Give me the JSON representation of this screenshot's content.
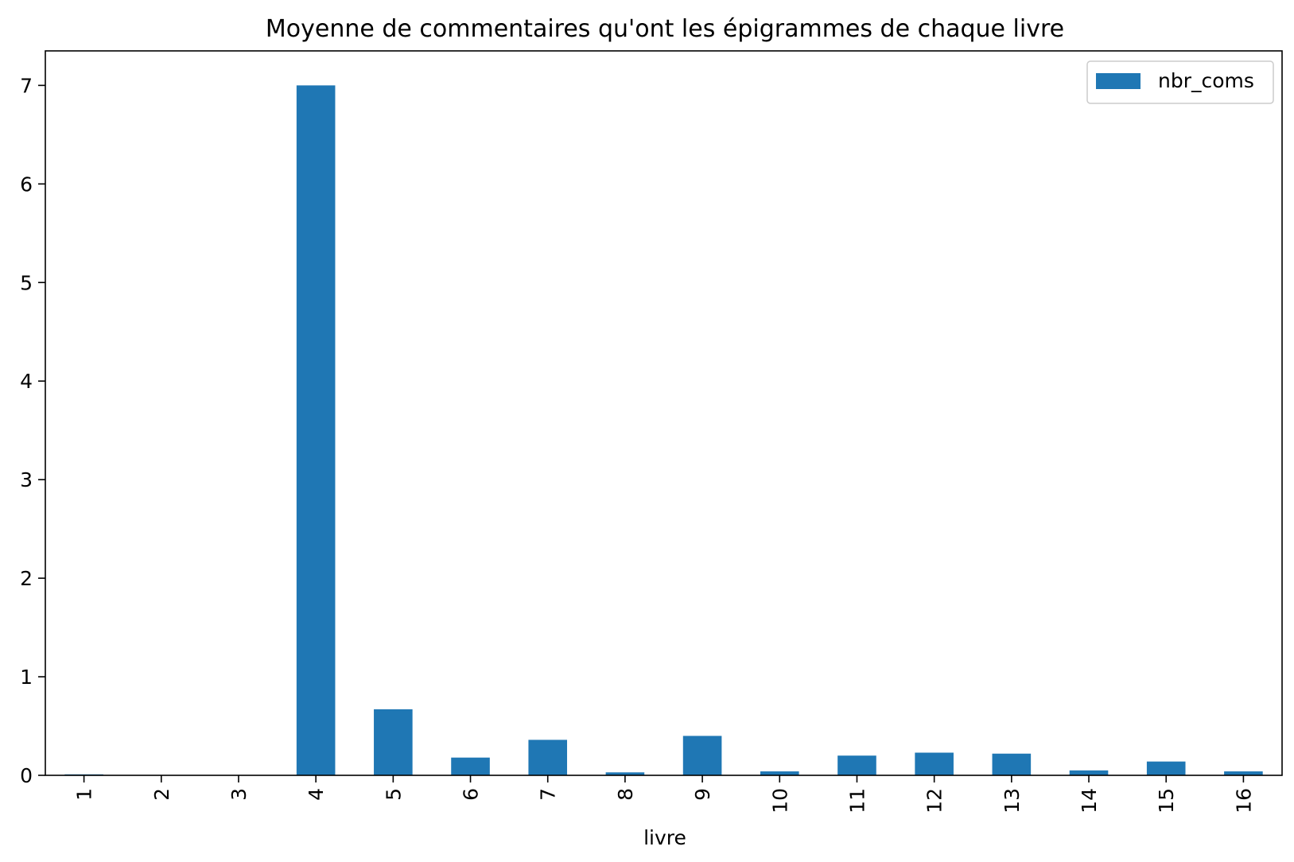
{
  "chart_data": {
    "type": "bar",
    "title": "Moyenne de commentaires qu'ont les épigrammes de chaque livre",
    "xlabel": "livre",
    "ylabel": "",
    "categories": [
      "1",
      "2",
      "3",
      "4",
      "5",
      "6",
      "7",
      "8",
      "9",
      "10",
      "11",
      "12",
      "13",
      "14",
      "15",
      "16"
    ],
    "series": [
      {
        "name": "nbr_coms",
        "color": "#1f77b4",
        "values": [
          0.01,
          0.0,
          0.0,
          7.0,
          0.67,
          0.18,
          0.36,
          0.03,
          0.4,
          0.04,
          0.2,
          0.23,
          0.22,
          0.05,
          0.14,
          0.04
        ]
      }
    ],
    "ylim": [
      0,
      7.35
    ],
    "yticks": [
      0,
      1,
      2,
      3,
      4,
      5,
      6,
      7
    ],
    "grid": false,
    "legend_position": "top-right"
  }
}
